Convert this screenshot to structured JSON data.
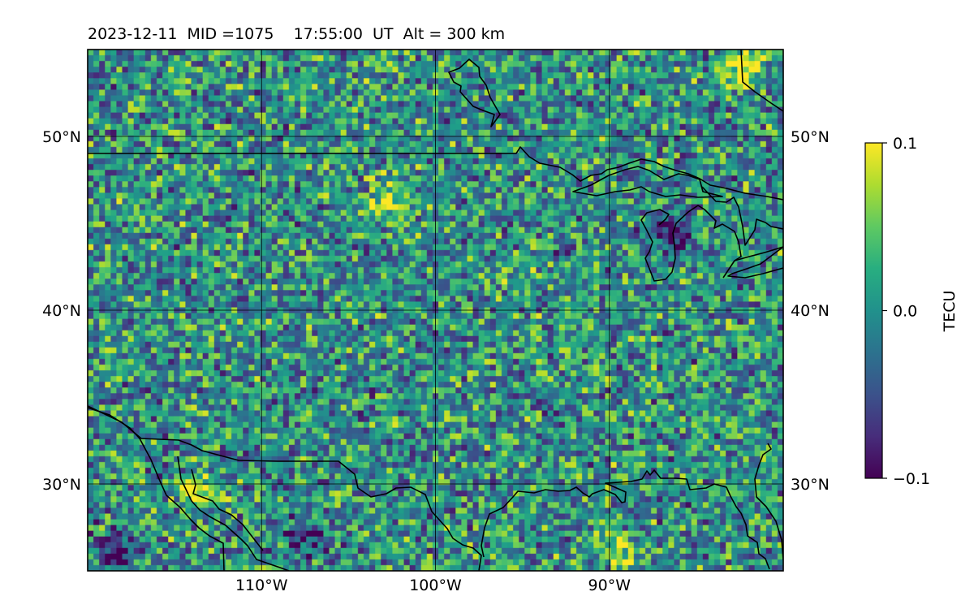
{
  "chart_data": {
    "type": "heatmap",
    "title": "2023-12-11  MID =1075    17:55:00  UT  Alt = 300 km",
    "map": {
      "lon_range": [
        -120,
        -80
      ],
      "lat_range": [
        25,
        55
      ],
      "lon_ticks": [
        -110,
        -100,
        -90
      ],
      "lon_tick_labels": [
        "110°W",
        "100°W",
        "90°W"
      ],
      "lat_ticks": [
        30,
        40,
        50
      ],
      "lat_tick_labels": [
        "30°N",
        "40°N",
        "50°N"
      ],
      "grid": true,
      "coastlines": true
    },
    "colorbar": {
      "label": "TECU",
      "colormap": "viridis",
      "vmin": -0.1,
      "vmax": 0.1,
      "ticks": [
        0.1,
        0.0,
        -0.1
      ],
      "tick_labels": [
        "0.1",
        "0.0",
        "−0.1"
      ]
    },
    "grid_resolution_deg": 0.33,
    "base_value": 0.0,
    "features": [
      {
        "label": "strong positive patch, northern Ontario",
        "lon": -82.5,
        "lat": 53.8,
        "value": 0.1
      },
      {
        "label": "positive patch, Gulf of California",
        "lon": -113.7,
        "lat": 29.6,
        "value": 0.1
      },
      {
        "label": "positive band, southern Texas / Gulf coast",
        "lon": -89.6,
        "lat": 26.2,
        "value": 0.09
      },
      {
        "label": "positive patch, Black Hills region",
        "lon": -102.8,
        "lat": 46.3,
        "value": 0.08
      },
      {
        "label": "negative patch, northern Mexico",
        "lon": -118.5,
        "lat": 26.0,
        "value": -0.1
      },
      {
        "label": "negative patch, Lake Michigan area",
        "lon": -86.5,
        "lat": 44.5,
        "value": -0.09
      },
      {
        "label": "negative patch, Sierra Madre",
        "lon": -107.5,
        "lat": 26.8,
        "value": -0.08
      }
    ]
  }
}
